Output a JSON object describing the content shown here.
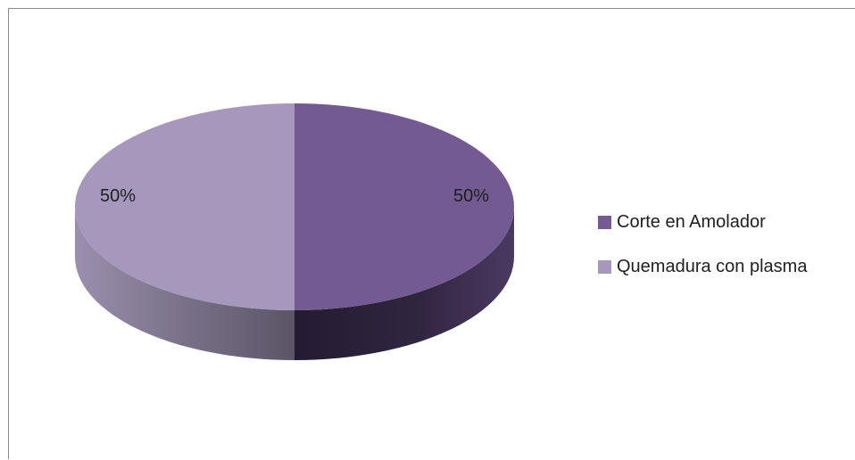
{
  "chart_data": {
    "type": "pie",
    "style": "3d",
    "title": "",
    "legend_position": "right",
    "slices": [
      {
        "label": "Corte en Amolador",
        "value": 50,
        "display": "50%",
        "color": "#735a92"
      },
      {
        "label": "Quemadura con plasma",
        "value": 50,
        "display": "50%",
        "color": "#a698bd"
      }
    ]
  }
}
